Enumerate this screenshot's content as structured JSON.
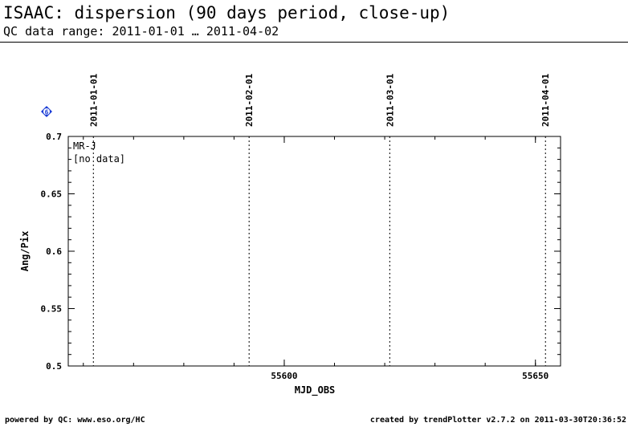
{
  "header": {
    "title": "ISAAC: dispersion (90 days period, close-up)",
    "subtitle": "QC data range: 2011-01-01 … 2011-04-02"
  },
  "footer": {
    "left": "powered by QC: www.eso.org/HC",
    "right": "created by trendPlotter v2.7.2 on 2011-03-30T20:36:52"
  },
  "badge": {
    "label": "6",
    "color": "#1a3cd6"
  },
  "chart_data": {
    "type": "scatter",
    "xlabel": "MJD_OBS",
    "ylabel": "Ang/Pix",
    "xlim": [
      55557,
      55655
    ],
    "ylim": [
      0.5,
      0.7
    ],
    "x_ticks": [
      55600,
      55650
    ],
    "y_ticks": [
      0.5,
      0.55,
      0.6,
      0.65,
      0.7
    ],
    "series": [
      {
        "name": "MR-J",
        "x": [],
        "y": []
      }
    ],
    "annotation": "[no data]",
    "date_markers": [
      {
        "label": "2011-01-01",
        "mjd": 55562
      },
      {
        "label": "2011-02-01",
        "mjd": 55593
      },
      {
        "label": "2011-03-01",
        "mjd": 55621
      },
      {
        "label": "2011-04-01",
        "mjd": 55652
      }
    ],
    "grid": false
  }
}
